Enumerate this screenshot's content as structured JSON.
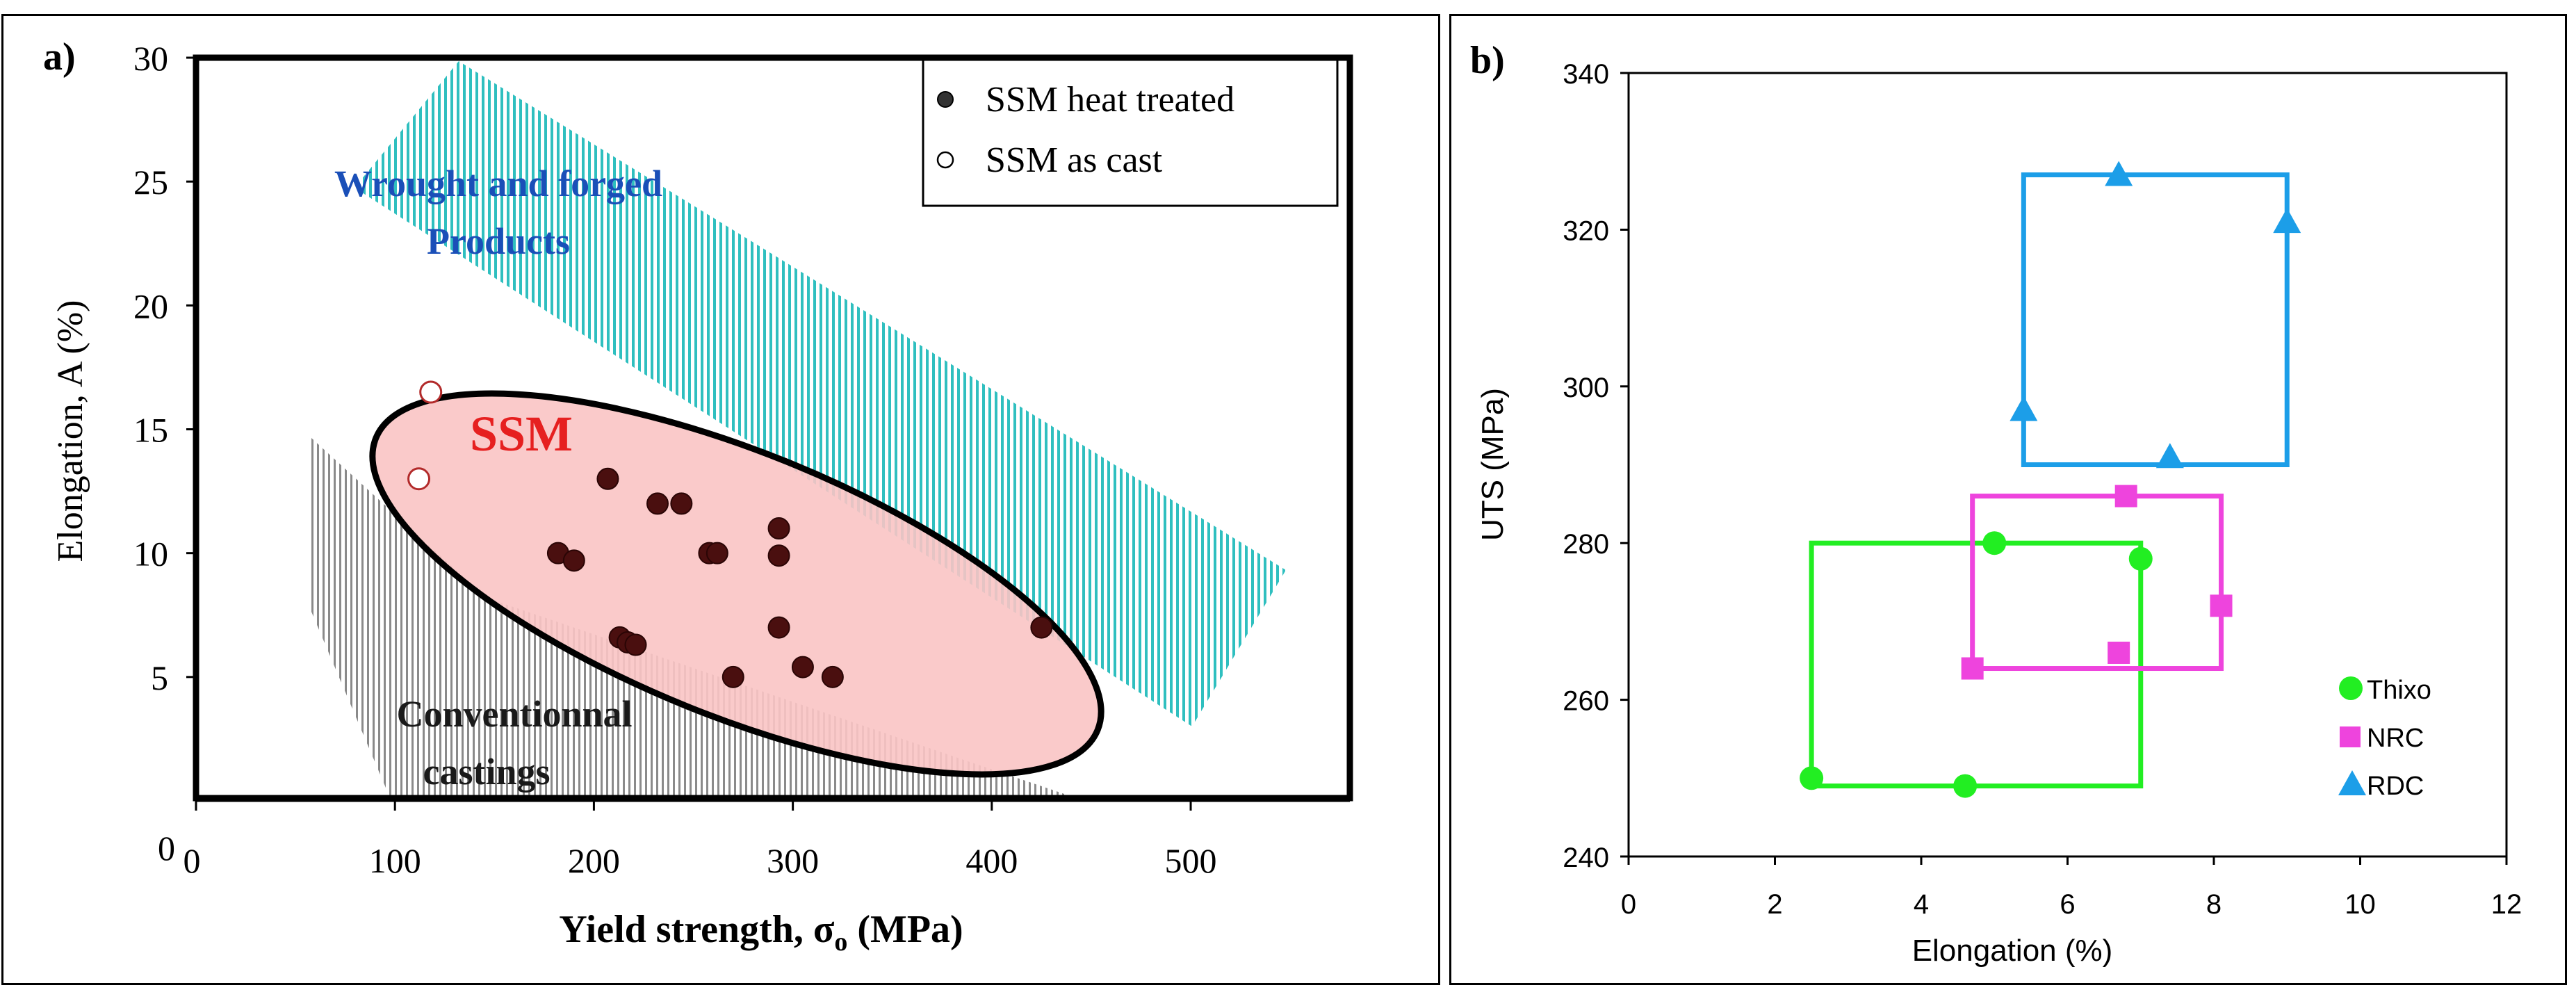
{
  "chart_data": [
    {
      "type": "scatter",
      "panel_label": "a)",
      "xlabel": "Yield strength, σ",
      "xlabel_sub": "o",
      "xlabel_unit": " (MPa)",
      "ylabel": "Elongation, A (%)",
      "xlim": [
        0,
        580
      ],
      "ylim": [
        0,
        30
      ],
      "x_ticks": [
        "0",
        "100",
        "200",
        "300",
        "400",
        "500"
      ],
      "y_ticks": [
        "0",
        "5",
        "10",
        "15",
        "20",
        "25",
        "30"
      ],
      "x_tick_values": [
        0,
        100,
        200,
        300,
        400,
        500
      ],
      "y_tick_values": [
        0,
        5,
        10,
        15,
        20,
        25,
        30
      ],
      "legend_position": "top-right",
      "regions": {
        "wrought": [
          "Wrought and forged",
          "Products"
        ],
        "ssm": "SSM",
        "conventional": [
          "Conventionnal",
          "castings"
        ]
      },
      "series": [
        {
          "name": "SSM heat treated",
          "marker": "filled-circle",
          "color": "#4a0f0f",
          "points": [
            [
              207,
              13
            ],
            [
              232,
              12
            ],
            [
              244,
              12
            ],
            [
              182,
              10
            ],
            [
              190,
              9.7
            ],
            [
              258,
              10
            ],
            [
              262,
              10
            ],
            [
              293,
              11
            ],
            [
              293,
              9.9
            ],
            [
              213,
              6.6
            ],
            [
              217,
              6.4
            ],
            [
              221,
              6.3
            ],
            [
              293,
              7
            ],
            [
              270,
              5
            ],
            [
              305,
              5.4
            ],
            [
              320,
              5
            ],
            [
              425,
              7
            ]
          ]
        },
        {
          "name": "SSM as cast",
          "marker": "open-circle",
          "color": "#b22a2a",
          "points": [
            [
              118,
              16.5
            ],
            [
              112,
              13
            ]
          ]
        }
      ]
    },
    {
      "type": "scatter",
      "panel_label": "b)",
      "xlabel": "Elongation (%)",
      "ylabel": "UTS (MPa)",
      "xlim": [
        0,
        12
      ],
      "ylim": [
        240,
        340
      ],
      "x_ticks": [
        "0",
        "2",
        "4",
        "6",
        "8",
        "10",
        "12"
      ],
      "y_ticks": [
        "240",
        "260",
        "280",
        "300",
        "320",
        "340"
      ],
      "x_tick_values": [
        0,
        2,
        4,
        6,
        8,
        10,
        12
      ],
      "y_tick_values": [
        240,
        260,
        280,
        300,
        320,
        340
      ],
      "legend_position": "bottom-right",
      "series": [
        {
          "name": "Thixo",
          "marker": "circle",
          "color": "#22ee22",
          "points": [
            [
              2.5,
              250
            ],
            [
              4.6,
              249
            ],
            [
              5.0,
              280
            ],
            [
              7.0,
              278
            ]
          ],
          "box": {
            "x": [
              2.5,
              7.0
            ],
            "y": [
              249,
              280
            ]
          }
        },
        {
          "name": "NRC",
          "marker": "square",
          "color": "#ee44dd",
          "points": [
            [
              4.7,
              264
            ],
            [
              6.7,
              266
            ],
            [
              6.8,
              286
            ],
            [
              8.1,
              272
            ]
          ],
          "box": {
            "x": [
              4.7,
              8.1
            ],
            "y": [
              264,
              286
            ]
          }
        },
        {
          "name": "RDC",
          "marker": "triangle",
          "color": "#1c9ee8",
          "points": [
            [
              5.4,
              297
            ],
            [
              6.7,
              327
            ],
            [
              7.4,
              291
            ],
            [
              9.0,
              321
            ]
          ],
          "box": {
            "x": [
              5.4,
              9.0
            ],
            "y": [
              290,
              327
            ]
          }
        }
      ]
    }
  ]
}
